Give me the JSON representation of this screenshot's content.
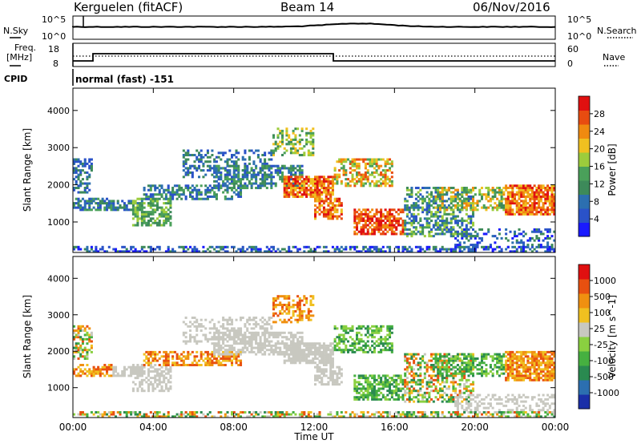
{
  "header": {
    "station": "Kerguelen (fitACF)",
    "beam": "Beam 14",
    "date": "06/Nov/2016"
  },
  "labels": {
    "nsky": "N.Sky",
    "nsearch": "N.Search",
    "freq_line1": "Freq.",
    "freq_line2": "[MHz]",
    "nave": "Nave",
    "cpid": "CPID",
    "cpid_text": "normal (fast) -151"
  },
  "ticks": {
    "noise_left": [
      "10^5",
      "10^0"
    ],
    "noise_right": [
      "10^5",
      "10^0"
    ],
    "freq_left": [
      "18",
      "8"
    ],
    "freq_right": [
      "60",
      "0"
    ]
  },
  "chart_data": {
    "type": "heatmap",
    "xlabel": "Time UT",
    "x_ticks": [
      "00:00",
      "04:00",
      "08:00",
      "12:00",
      "16:00",
      "20:00",
      "00:00"
    ],
    "xlim_hours": [
      0,
      24
    ],
    "ylabel": "Slant Range [km]",
    "y_ticks": [
      1000,
      2000,
      3000,
      4000
    ],
    "ylim_km": [
      180,
      4600
    ],
    "panels": [
      {
        "name": "power",
        "colorbar_label": "Power [dB]",
        "colorbar_ticks": [
          "28",
          "24",
          "20",
          "16",
          "12",
          "8",
          "4"
        ],
        "colors": [
          "#1a1aff",
          "#2a52c8",
          "#2c6fb0",
          "#3d8a5a",
          "#4aa05a",
          "#9ccc3c",
          "#f0c020",
          "#f08a10",
          "#e84c10",
          "#e01010"
        ],
        "range": [
          0,
          30
        ]
      },
      {
        "name": "velocity",
        "colorbar_label": "Velocity [m s^-1]",
        "colorbar_ticks": [
          "1000",
          "500",
          "100",
          "25",
          "-25",
          "-100",
          "-500",
          "-1000"
        ],
        "colors": [
          "#1a2fa8",
          "#2c6fb0",
          "#2a8a50",
          "#46b040",
          "#8ad040",
          "#c8c8c0",
          "#f0c020",
          "#f09010",
          "#e85010",
          "#e01010"
        ],
        "range": [
          -1000,
          1000
        ]
      }
    ]
  }
}
